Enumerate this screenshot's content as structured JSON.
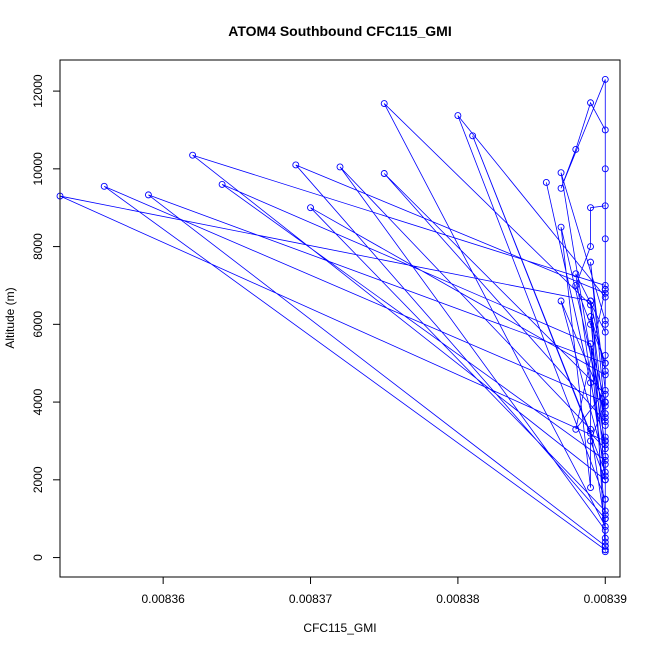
{
  "chart_data": {
    "type": "line",
    "title": "ATOM4 Southbound CFC115_GMI",
    "xlabel": "CFC115_GMI",
    "ylabel": "Altitude (m)",
    "xlim": [
      0.008353,
      0.008391
    ],
    "ylim": [
      -500,
      12800
    ],
    "xticks": [
      "0.00836",
      "0.00837",
      "0.00838",
      "0.00839"
    ],
    "xtick_values": [
      0.00836,
      0.00837,
      0.00838,
      0.00839
    ],
    "yticks": [
      "0",
      "2000",
      "4000",
      "6000",
      "8000",
      "10000",
      "12000"
    ],
    "ytick_values": [
      0,
      2000,
      4000,
      6000,
      8000,
      10000,
      12000
    ],
    "series_color": "#0000ff",
    "series": [
      {
        "style": "line+points",
        "x": [
          0.00839,
          0.00839,
          0.00839,
          0.00839,
          0.00839,
          0.008389,
          0.00839,
          0.00839,
          0.008389,
          0.008388,
          0.008389,
          0.008389,
          0.00839,
          0.00839,
          0.00839,
          0.008389,
          0.008388,
          0.008387,
          0.00839,
          0.00839,
          0.00839,
          0.00839,
          0.00839,
          0.00839,
          0.00839,
          0.008389,
          0.008353,
          0.00839,
          0.00839,
          0.008356,
          0.00839,
          0.00839,
          0.008359,
          0.00839,
          0.008389,
          0.00839,
          0.008362,
          0.00839,
          0.00839,
          0.008364,
          0.008389,
          0.00839,
          0.008369,
          0.00839,
          0.00839,
          0.00837,
          0.00839,
          0.00839,
          0.008372,
          0.008389,
          0.00839,
          0.008375,
          0.008389,
          0.00839,
          0.008375,
          0.00839,
          0.00839,
          0.00838,
          0.00839,
          0.00839,
          0.008381,
          0.008389,
          0.00839,
          0.008386,
          0.008389,
          0.008389,
          0.008387,
          0.00839,
          0.00839,
          0.008388,
          0.00839,
          0.00839,
          0.008389,
          0.00839,
          0.00839,
          0.00839,
          0.00839,
          0.00839,
          0.008387,
          0.00839,
          0.00839,
          0.008387,
          0.00839,
          0.00839,
          0.008389,
          0.00839,
          0.00839,
          0.008389,
          0.00839,
          0.008388,
          0.00839,
          0.00839,
          0.00839,
          0.00839,
          0.00839
        ],
        "y": [
          150,
          300,
          500,
          1000,
          2000,
          3000,
          4000,
          5000,
          6000,
          7000,
          8000,
          9000,
          9050,
          10000,
          11000,
          11700,
          10500,
          9500,
          12300,
          8200,
          6000,
          3000,
          1500,
          300,
          200,
          6600,
          9300,
          3000,
          200,
          9550,
          4000,
          300,
          9330,
          5000,
          6200,
          2000,
          10350,
          7000,
          2500,
          9600,
          5500,
          1000,
          10100,
          6800,
          1200,
          9000,
          4700,
          700,
          10050,
          3300,
          800,
          11680,
          6500,
          3500,
          9880,
          4200,
          1500,
          11370,
          6700,
          2200,
          10850,
          3200,
          2800,
          9650,
          4500,
          1800,
          8500,
          3600,
          2000,
          7300,
          5800,
          2600,
          6600,
          4800,
          3100,
          6900,
          5200,
          2400,
          6600,
          3900,
          2900,
          9900,
          6100,
          3400,
          5500,
          4000,
          3700,
          7600,
          4300,
          3300,
          6900,
          3000,
          2100,
          1100,
          400
        ]
      }
    ]
  }
}
